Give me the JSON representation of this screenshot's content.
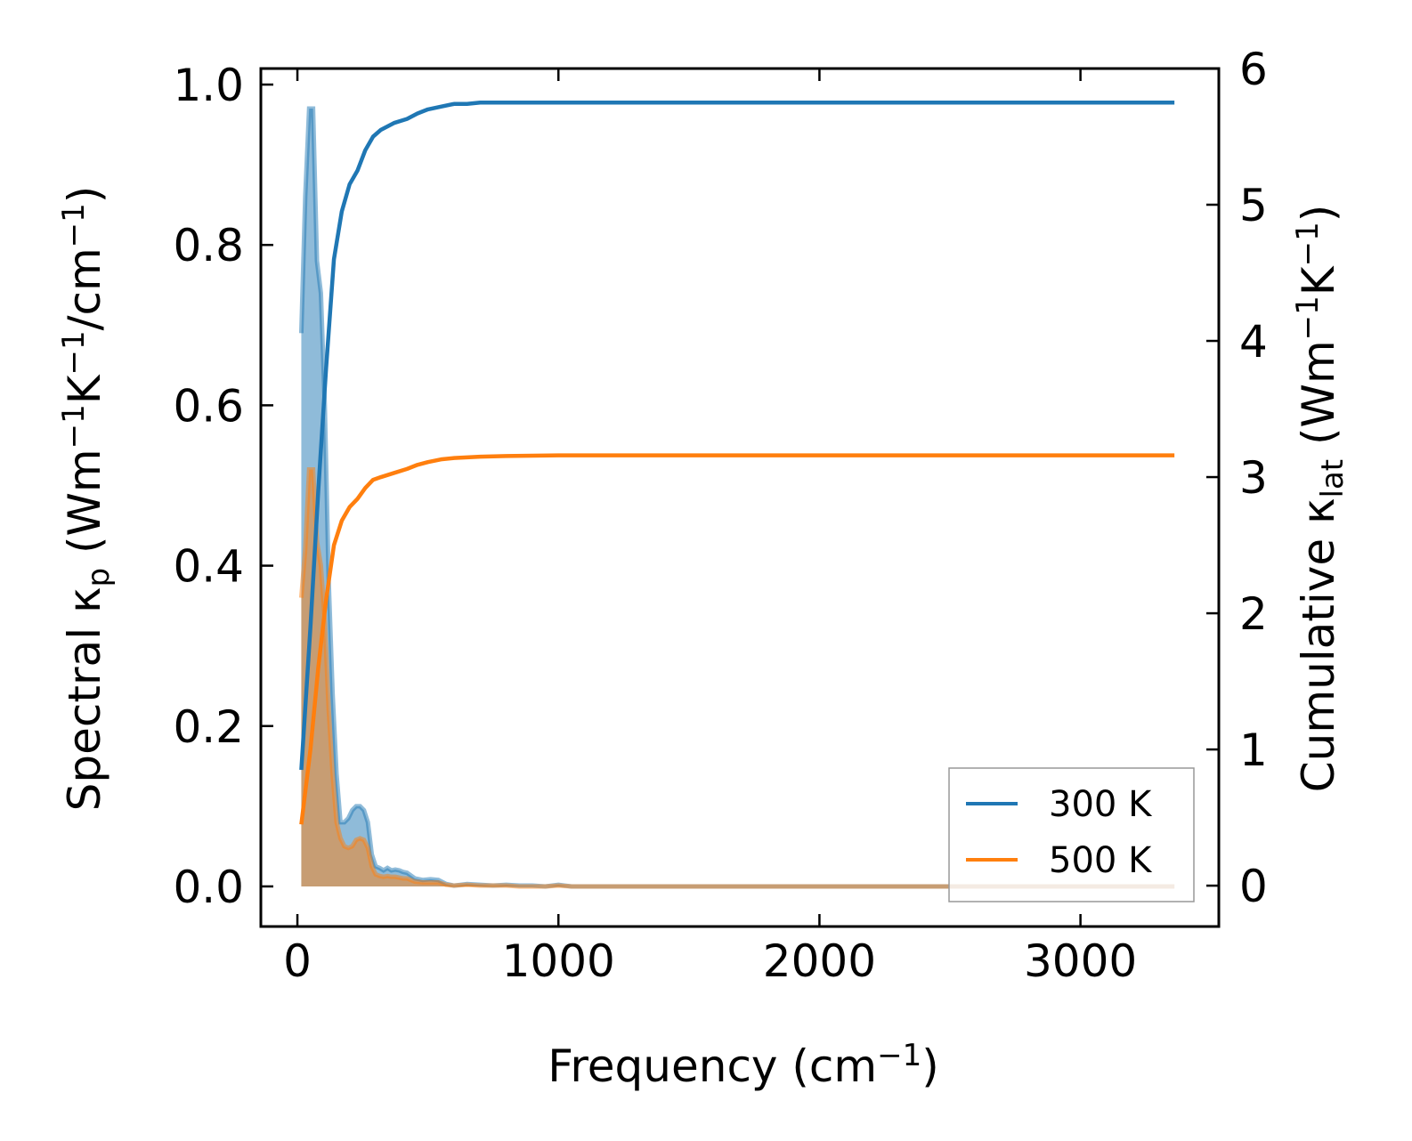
{
  "chart_data": {
    "type": "line",
    "xlabel": {
      "main": "Frequency (cm",
      "sup": "−1",
      "tail": ")"
    },
    "ylabel_left": {
      "a": "Spectral κ",
      "sub": "p",
      "b": " (Wm",
      "sup1": "−1",
      "c": "K",
      "sup2": "−1",
      "d": "/cm",
      "sup3": "−1",
      "e": ")"
    },
    "ylabel_right": {
      "a": "Cumulative κ",
      "sub": "lat",
      "b": " (Wm",
      "sup1": "−1",
      "c": "K",
      "sup2": "−1",
      "e": ")"
    },
    "xlim": [
      -140,
      3530
    ],
    "ylim_left": [
      -0.05,
      1.02
    ],
    "ylim_right": [
      -0.3,
      6.0
    ],
    "xticks": [
      0,
      1000,
      2000,
      3000
    ],
    "xtick_labels": [
      "0",
      "1000",
      "2000",
      "3000"
    ],
    "yticks_left": [
      0.0,
      0.2,
      0.4,
      0.6,
      0.8,
      1.0
    ],
    "ytick_labels_left": [
      "0.0",
      "0.2",
      "0.4",
      "0.6",
      "0.8",
      "1.0"
    ],
    "yticks_right": [
      0,
      1,
      2,
      3,
      4,
      5,
      6
    ],
    "ytick_labels_right": [
      "0",
      "1",
      "2",
      "3",
      "4",
      "5",
      "6"
    ],
    "legend": {
      "position": "lower-right",
      "entries": [
        "300 K",
        "500 K"
      ]
    },
    "series": [
      {
        "name": "300 K",
        "color": "#1f77b4",
        "spectral": {
          "x": [
            15,
            30,
            45,
            60,
            75,
            90,
            105,
            120,
            135,
            150,
            165,
            180,
            195,
            210,
            225,
            240,
            255,
            270,
            285,
            300,
            315,
            330,
            345,
            360,
            375,
            390,
            405,
            420,
            450,
            480,
            510,
            540,
            570,
            600,
            650,
            700,
            750,
            800,
            850,
            900,
            950,
            1000,
            1050,
            1100,
            1500,
            2000,
            2500,
            3000,
            3360
          ],
          "y": [
            0.69,
            0.86,
            0.97,
            0.97,
            0.78,
            0.74,
            0.6,
            0.38,
            0.24,
            0.14,
            0.08,
            0.08,
            0.085,
            0.095,
            0.1,
            0.1,
            0.095,
            0.08,
            0.04,
            0.025,
            0.023,
            0.02,
            0.023,
            0.02,
            0.021,
            0.02,
            0.018,
            0.017,
            0.01,
            0.008,
            0.009,
            0.008,
            0.003,
            0.001,
            0.003,
            0.002,
            0.001,
            0.002,
            0.001,
            0.001,
            0.0,
            0.002,
            0.0,
            0.0,
            0.0,
            0.0,
            0.0,
            0.0,
            0.0
          ]
        },
        "cumulative": {
          "x": [
            15,
            50,
            80,
            110,
            140,
            170,
            200,
            230,
            260,
            290,
            320,
            370,
            420,
            460,
            500,
            550,
            600,
            650,
            700,
            800,
            1000,
            1500,
            2000,
            2500,
            3000,
            3360
          ],
          "y": [
            0.85,
            1.9,
            2.9,
            3.8,
            4.6,
            4.95,
            5.15,
            5.25,
            5.4,
            5.5,
            5.55,
            5.6,
            5.63,
            5.67,
            5.7,
            5.72,
            5.74,
            5.74,
            5.75,
            5.75,
            5.75,
            5.75,
            5.75,
            5.75,
            5.75,
            5.75
          ]
        }
      },
      {
        "name": "500 K",
        "color": "#ff7f0e",
        "spectral": {
          "x": [
            15,
            30,
            45,
            60,
            75,
            90,
            105,
            120,
            135,
            150,
            165,
            180,
            195,
            210,
            225,
            240,
            255,
            270,
            285,
            300,
            315,
            330,
            345,
            360,
            375,
            390,
            405,
            420,
            450,
            480,
            510,
            540,
            570,
            600,
            650,
            700,
            750,
            800,
            850,
            900,
            950,
            1000,
            1050,
            1100,
            1500,
            2000,
            2500,
            3000,
            3360
          ],
          "y": [
            0.36,
            0.42,
            0.52,
            0.52,
            0.43,
            0.4,
            0.33,
            0.22,
            0.14,
            0.08,
            0.06,
            0.05,
            0.048,
            0.05,
            0.058,
            0.06,
            0.058,
            0.048,
            0.025,
            0.015,
            0.013,
            0.012,
            0.013,
            0.012,
            0.012,
            0.011,
            0.01,
            0.01,
            0.006,
            0.005,
            0.005,
            0.005,
            0.002,
            0.001,
            0.002,
            0.001,
            0.001,
            0.001,
            0.0,
            0.0,
            0.0,
            0.001,
            0.0,
            0.0,
            0.0,
            0.0,
            0.0,
            0.0,
            0.0
          ]
        },
        "cumulative": {
          "x": [
            15,
            50,
            80,
            110,
            140,
            170,
            200,
            230,
            260,
            290,
            320,
            370,
            420,
            460,
            500,
            550,
            600,
            650,
            700,
            800,
            1000,
            1500,
            2000,
            2500,
            3000,
            3360
          ],
          "y": [
            0.45,
            1.0,
            1.6,
            2.1,
            2.5,
            2.68,
            2.78,
            2.84,
            2.92,
            2.98,
            3.0,
            3.03,
            3.06,
            3.09,
            3.11,
            3.13,
            3.14,
            3.145,
            3.15,
            3.155,
            3.16,
            3.16,
            3.16,
            3.16,
            3.16,
            3.16
          ]
        }
      }
    ]
  }
}
